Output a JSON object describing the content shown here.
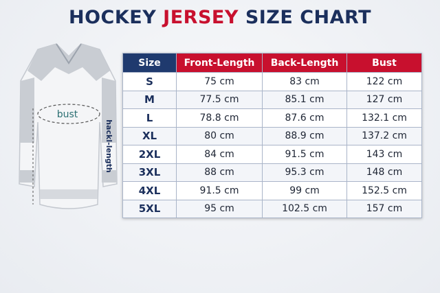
{
  "header": {
    "title_parts": [
      "HOCKEY",
      "JERSEY",
      "SIZE CHART"
    ]
  },
  "illustration": {
    "labels": [
      "bust",
      "hackl-length"
    ]
  },
  "table": {
    "columns": [
      "Size",
      "Front-Length",
      "Back-Length",
      "Bust"
    ],
    "rows": [
      [
        "S",
        "75 cm",
        "83 cm",
        "122 cm"
      ],
      [
        "M",
        "77.5 cm",
        "85.1 cm",
        "127 cm"
      ],
      [
        "L",
        "78.8 cm",
        "87.6 cm",
        "132.1 cm"
      ],
      [
        "XL",
        "80 cm",
        "88.9 cm",
        "137.2 cm"
      ],
      [
        "2XL",
        "84 cm",
        "91.5 cm",
        "143 cm"
      ],
      [
        "3XL",
        "88 cm",
        "95.3 cm",
        "148 cm"
      ],
      [
        "4XL",
        "91.5 cm",
        "99 cm",
        "152.5 cm"
      ],
      [
        "5XL",
        "95 cm",
        "102.5 cm",
        "157 cm"
      ]
    ]
  }
}
